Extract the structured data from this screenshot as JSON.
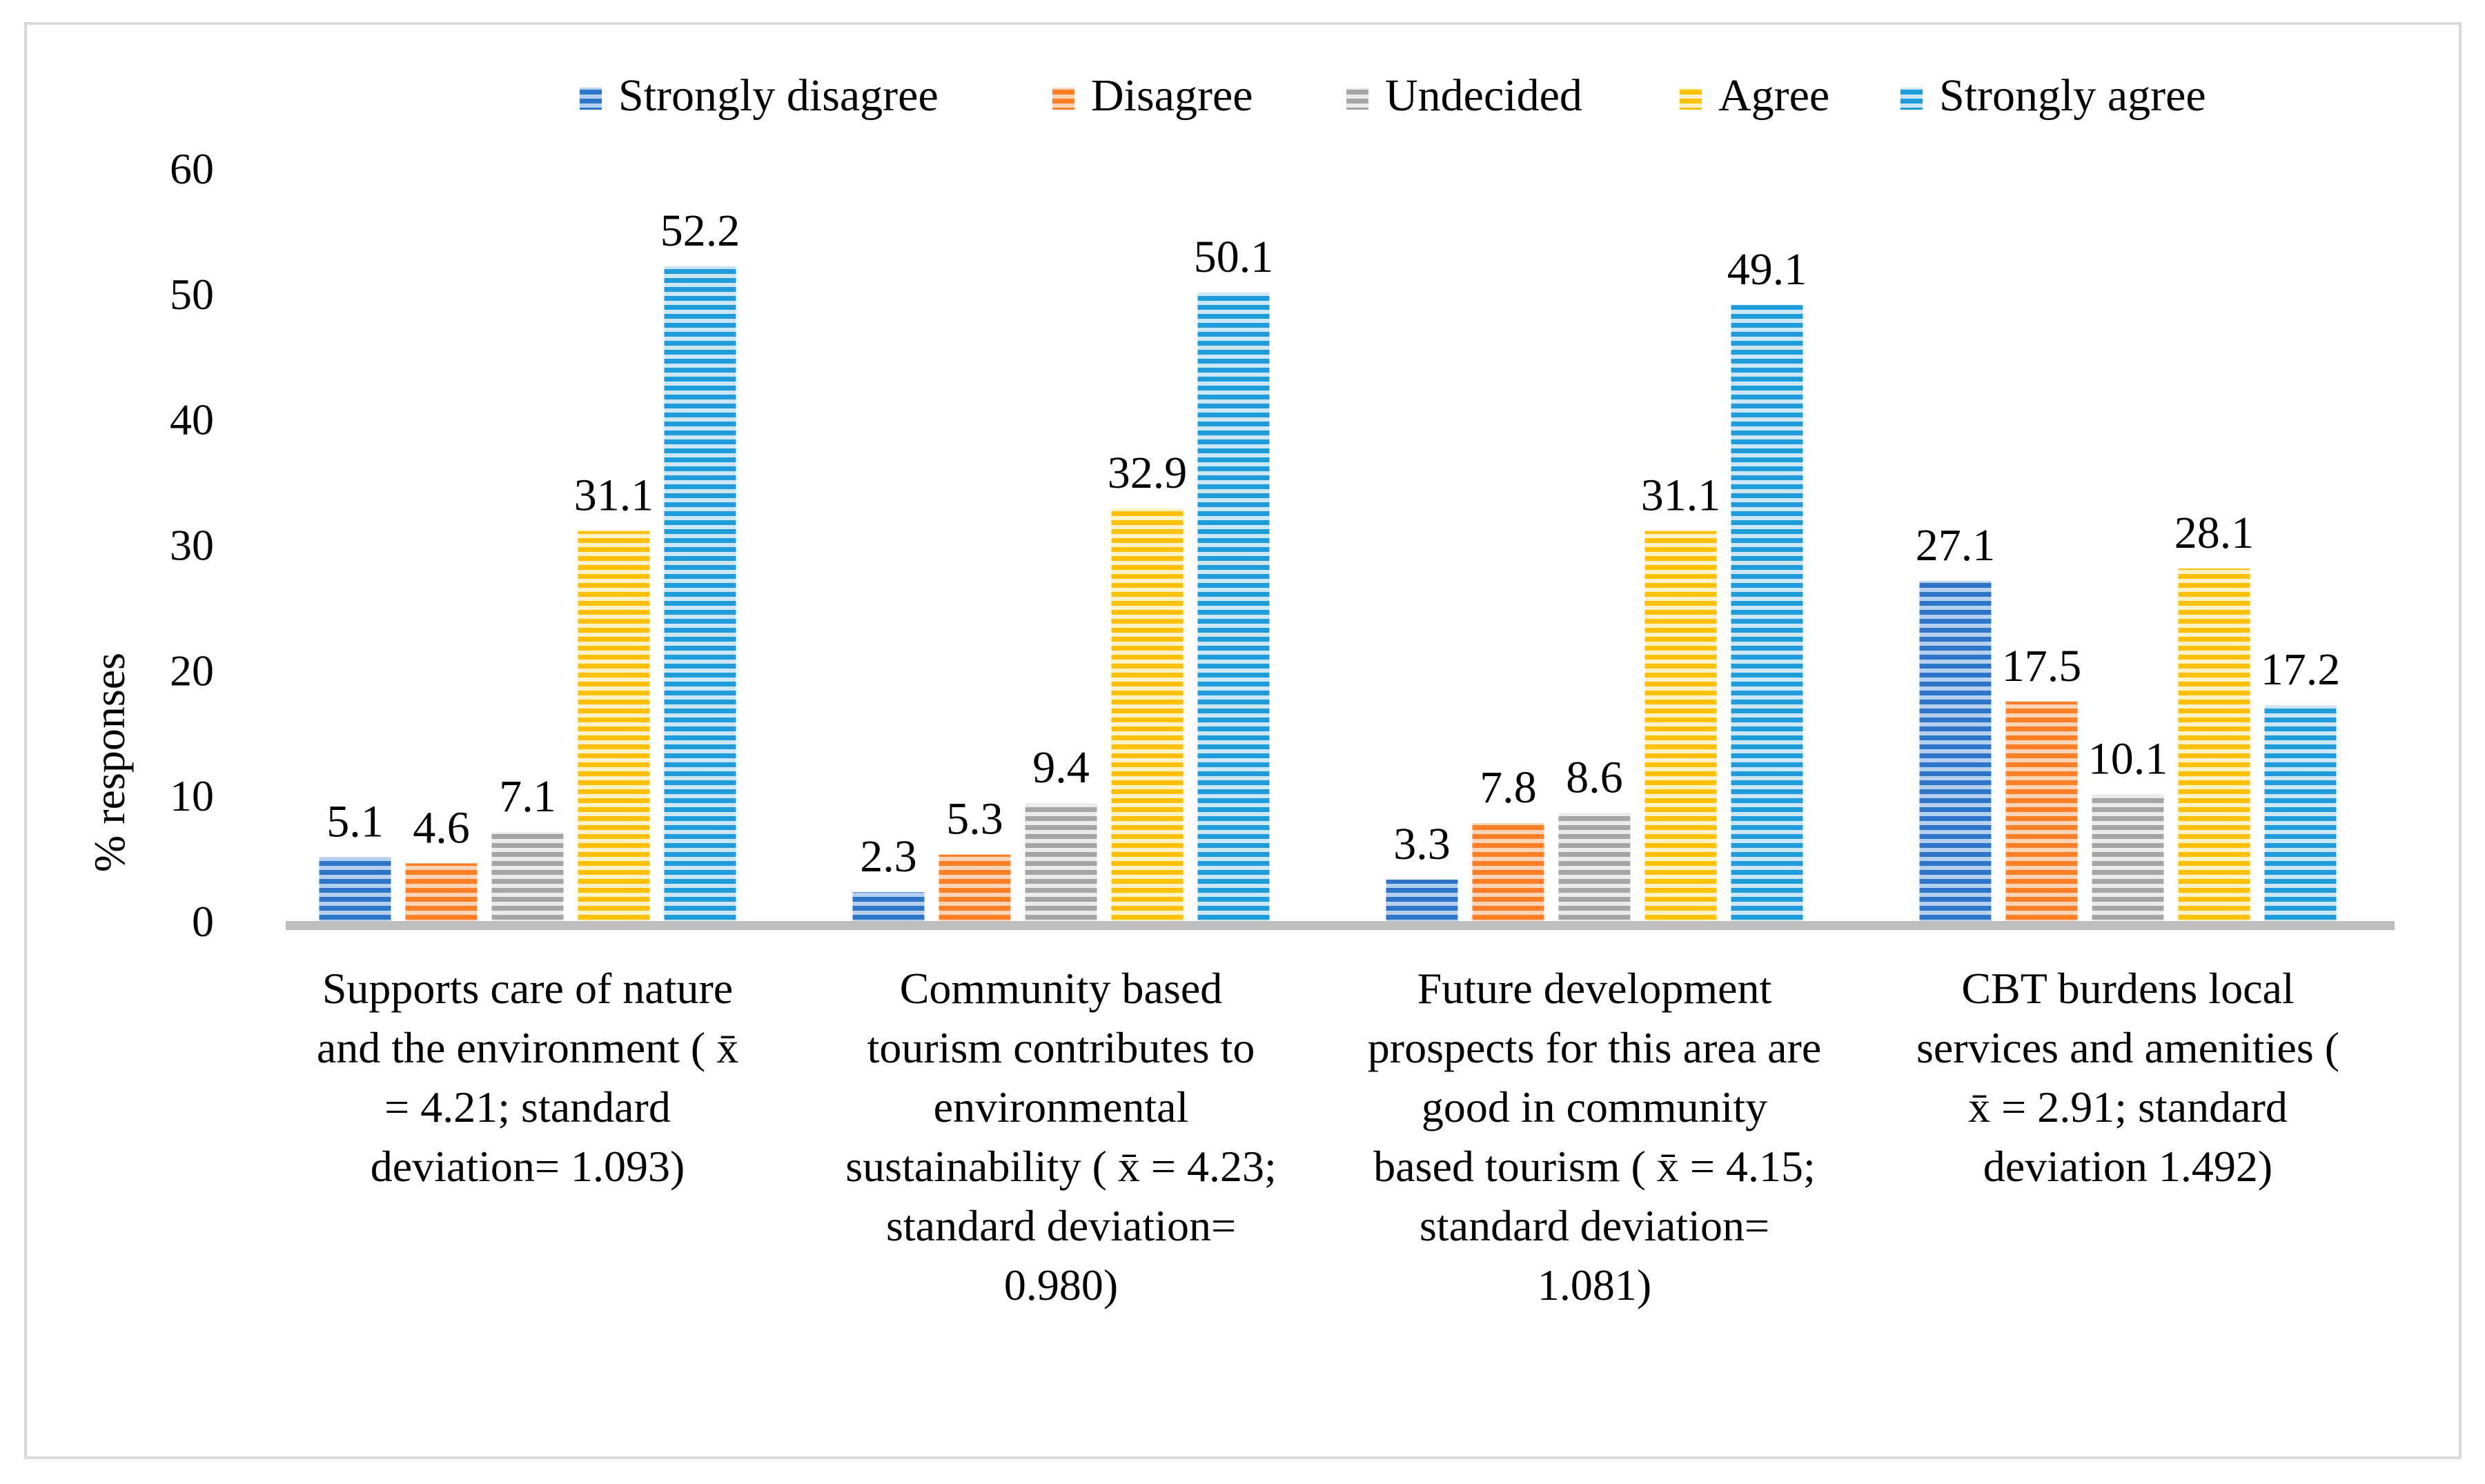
{
  "chart_data": {
    "type": "bar",
    "title": "",
    "xlabel": "",
    "ylabel": "% responses",
    "ylim": [
      0,
      60
    ],
    "yticks": [
      0,
      10,
      20,
      30,
      40,
      50,
      60
    ],
    "grid": false,
    "legend_position": "top",
    "categories": [
      [
        "Supports care of nature",
        "and the environment ( x̄",
        "= 4.21; standard",
        "deviation= 1.093)"
      ],
      [
        "Community based",
        "tourism contributes to",
        "environmental",
        "sustainability ( x̄ = 4.23;",
        "standard deviation=",
        "0.980)"
      ],
      [
        "Future development",
        "prospects for this area are",
        "good in community",
        "based tourism ( x̄ = 4.15;",
        "standard deviation=",
        "1.081)"
      ],
      [
        "CBT burdens local",
        "services and amenities (",
        "x̄ = 2.91; standard",
        "deviation 1.492)"
      ]
    ],
    "series": [
      {
        "name": "Strongly disagree",
        "values": [
          5.1,
          2.3,
          3.3,
          27.1
        ],
        "color": "#2E75C8",
        "light": "#B4CFEF"
      },
      {
        "name": "Disagree",
        "values": [
          4.6,
          5.3,
          7.8,
          17.5
        ],
        "color": "#FF7F27",
        "light": "#FFD3B5"
      },
      {
        "name": "Undecided",
        "values": [
          7.1,
          9.4,
          8.6,
          10.1
        ],
        "color": "#A5A5A5",
        "light": "#EBEBEB"
      },
      {
        "name": "Agree",
        "values": [
          31.1,
          32.9,
          31.1,
          28.1
        ],
        "color": "#FFC000",
        "light": "#FFF2C8"
      },
      {
        "name": "Strongly agree",
        "values": [
          52.2,
          50.1,
          49.1,
          17.2
        ],
        "color": "#1D9BDA",
        "light": "#CBE7F7"
      }
    ],
    "axis_color": "#BFBFBF"
  }
}
